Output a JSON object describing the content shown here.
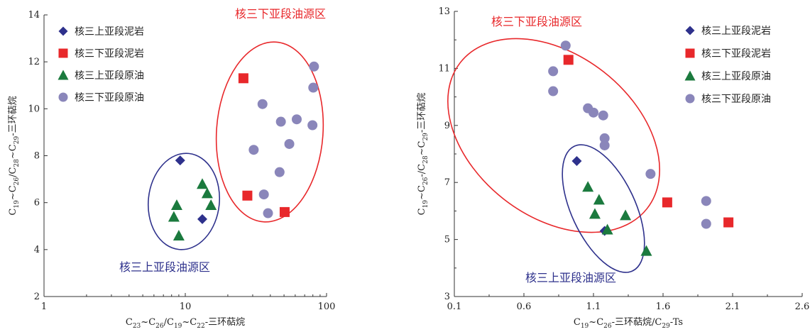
{
  "colors": {
    "blue_marker": "#2e318c",
    "red_marker": "#e8282b",
    "green_marker": "#1b7a3e",
    "purple_marker": "#8a86ba",
    "ellipse_red": "#e8282b",
    "ellipse_blue": "#2e318c"
  },
  "chart_data": [
    {
      "type": "scatter",
      "x_scale": "log",
      "xlim": [
        1,
        100
      ],
      "ylim": [
        2,
        14
      ],
      "xticks": [
        "1",
        "10",
        "100"
      ],
      "yticks": [
        "2",
        "4",
        "6",
        "8",
        "10",
        "12",
        "14"
      ],
      "xlabel": "C23~C26/C19~C22-三环萜烷",
      "ylabel": "C19~C26/C28~C29-三环萜烷",
      "legend": {
        "placement": "top-left"
      },
      "region_labels": {
        "red": "核三下亚段油源区",
        "blue": "核三上亚段油源区"
      },
      "series": [
        {
          "name": "核三上亚段泥岩",
          "marker": "diamond",
          "color": "#2e318c",
          "points": [
            [
              9.2,
              7.8
            ],
            [
              13.2,
              5.3
            ]
          ]
        },
        {
          "name": "核三下亚段泥岩",
          "marker": "square",
          "color": "#e8282b",
          "points": [
            [
              25.8,
              11.3
            ],
            [
              27.5,
              6.3
            ],
            [
              50.5,
              5.6
            ]
          ]
        },
        {
          "name": "核三上亚段原油",
          "marker": "triangle",
          "color": "#1b7a3e",
          "points": [
            [
              8.7,
              5.9
            ],
            [
              8.3,
              5.4
            ],
            [
              9.0,
              4.6
            ],
            [
              13.2,
              6.8
            ],
            [
              14.3,
              6.4
            ],
            [
              15.2,
              5.9
            ]
          ]
        },
        {
          "name": "核三下亚段原油",
          "marker": "circle",
          "color": "#8a86ba",
          "points": [
            [
              81.5,
              11.8
            ],
            [
              80.5,
              10.9
            ],
            [
              35.2,
              10.2
            ],
            [
              61.5,
              9.55
            ],
            [
              47.5,
              9.45
            ],
            [
              79.5,
              9.3
            ],
            [
              30.5,
              8.25
            ],
            [
              54.5,
              8.5
            ],
            [
              46.5,
              7.3
            ],
            [
              36.0,
              6.35
            ],
            [
              38.5,
              5.55
            ]
          ]
        }
      ]
    },
    {
      "type": "scatter",
      "xlim": [
        0.1,
        2.6
      ],
      "ylim": [
        3,
        13
      ],
      "xticks": [
        "0.1",
        "0.6",
        "1.1",
        "1.6",
        "2.1",
        "2.6"
      ],
      "yticks": [
        "3",
        "5",
        "7",
        "9",
        "11",
        "13"
      ],
      "xlabel": "C19~C26-三环萜烷/C29-Ts",
      "ylabel": "C19~C26-/C28~C29-三环萜烷",
      "legend": {
        "placement": "top-right"
      },
      "region_labels": {
        "red": "核三下亚段油源区",
        "blue": "核三上亚段油源区"
      },
      "series": [
        {
          "name": "核三上亚段泥岩",
          "marker": "diamond",
          "color": "#2e318c",
          "points": [
            [
              0.98,
              7.75
            ],
            [
              1.18,
              5.3
            ]
          ]
        },
        {
          "name": "核三下亚段泥岩",
          "marker": "square",
          "color": "#e8282b",
          "points": [
            [
              0.92,
              11.3
            ],
            [
              1.63,
              6.3
            ],
            [
              2.07,
              5.6
            ]
          ]
        },
        {
          "name": "核三上亚段原油",
          "marker": "triangle",
          "color": "#1b7a3e",
          "points": [
            [
              1.06,
              6.85
            ],
            [
              1.14,
              6.4
            ],
            [
              1.11,
              5.9
            ],
            [
              1.2,
              5.35
            ],
            [
              1.33,
              5.85
            ],
            [
              1.48,
              4.6
            ]
          ]
        },
        {
          "name": "核三下亚段原油",
          "marker": "circle",
          "color": "#8a86ba",
          "points": [
            [
              0.9,
              11.8
            ],
            [
              0.81,
              10.9
            ],
            [
              0.81,
              10.2
            ],
            [
              1.06,
              9.6
            ],
            [
              1.1,
              9.45
            ],
            [
              1.17,
              9.35
            ],
            [
              1.18,
              8.55
            ],
            [
              1.18,
              8.3
            ],
            [
              1.51,
              7.3
            ],
            [
              1.91,
              6.35
            ],
            [
              1.91,
              5.55
            ]
          ]
        }
      ]
    }
  ]
}
